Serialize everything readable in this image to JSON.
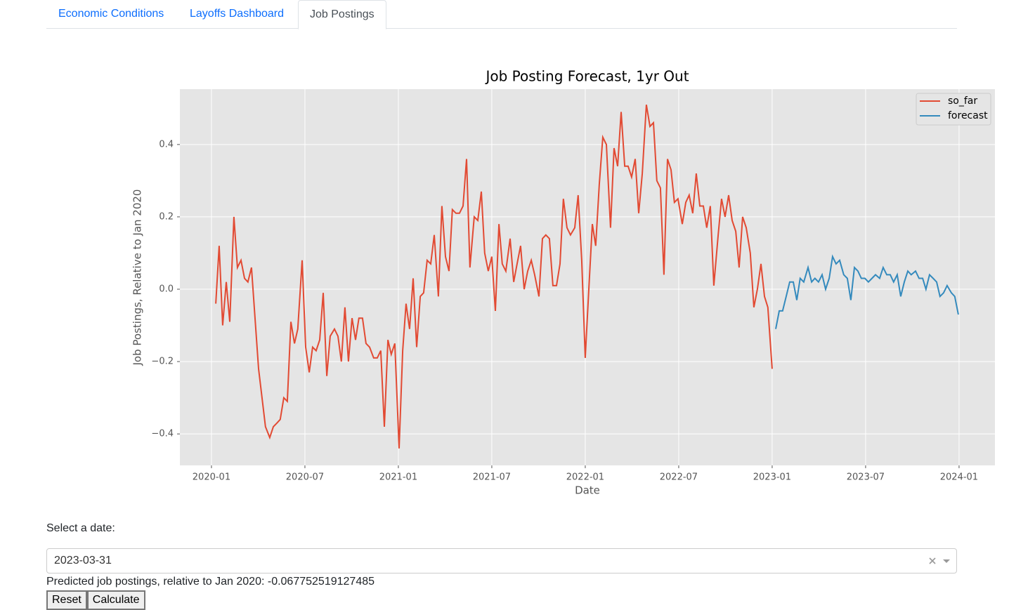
{
  "tabs": [
    "Economic Conditions",
    "Layoffs Dashboard",
    "Job Postings"
  ],
  "chart_data": {
    "type": "line",
    "title": "Job Posting Forecast, 1yr Out",
    "x_label": "Date",
    "y_label": "Job Postings, Relative to Jan 2020",
    "xlim": [
      2019.831,
      2024.192
    ],
    "ylim": [
      -0.487,
      0.553
    ],
    "xticks": [
      {
        "value": 2020.0,
        "label": "2020-01"
      },
      {
        "value": 2020.5,
        "label": "2020-07"
      },
      {
        "value": 2021.0,
        "label": "2021-01"
      },
      {
        "value": 2021.5,
        "label": "2021-07"
      },
      {
        "value": 2022.0,
        "label": "2022-01"
      },
      {
        "value": 2022.5,
        "label": "2022-07"
      },
      {
        "value": 2023.0,
        "label": "2023-01"
      },
      {
        "value": 2023.5,
        "label": "2023-07"
      },
      {
        "value": 2024.0,
        "label": "2024-01"
      }
    ],
    "yticks": [
      {
        "value": -0.4,
        "label": "−0.4"
      },
      {
        "value": -0.2,
        "label": "−0.2"
      },
      {
        "value": 0,
        "label": "0.0"
      },
      0.2,
      0.4
    ],
    "grid": true,
    "legend": "upper right",
    "background": "#e5e5e5",
    "series": [
      {
        "name": "so_far",
        "color": "#e24a33",
        "x": [
          2020.023,
          2020.041,
          2020.06,
          2020.079,
          2020.098,
          2020.12,
          2020.139,
          2020.158,
          2020.177,
          2020.195,
          2020.214,
          2020.252,
          2020.289,
          2020.312,
          2020.331,
          2020.35,
          2020.368,
          2020.387,
          2020.406,
          2020.425,
          2020.444,
          2020.462,
          2020.485,
          2020.504,
          2020.523,
          2020.541,
          2020.56,
          2020.579,
          2020.598,
          2020.617,
          2020.635,
          2020.658,
          2020.677,
          2020.695,
          2020.714,
          2020.733,
          2020.752,
          2020.771,
          2020.789,
          2020.808,
          2020.827,
          2020.846,
          2020.868,
          2020.887,
          2020.906,
          2020.925,
          2020.944,
          2020.962,
          2020.981,
          2021.004,
          2021.023,
          2021.041,
          2021.06,
          2021.079,
          2021.098,
          2021.117,
          2021.135,
          2021.154,
          2021.173,
          2021.192,
          2021.214,
          2021.233,
          2021.252,
          2021.271,
          2021.289,
          2021.308,
          2021.327,
          2021.346,
          2021.365,
          2021.383,
          2021.406,
          2021.425,
          2021.444,
          2021.462,
          2021.481,
          2021.5,
          2021.519,
          2021.538,
          2021.556,
          2021.575,
          2021.598,
          2021.617,
          2021.635,
          2021.654,
          2021.673,
          2021.692,
          2021.711,
          2021.729,
          2021.752,
          2021.771,
          2021.789,
          2021.808,
          2021.827,
          2021.846,
          2021.865,
          2021.883,
          2021.902,
          2021.921,
          2021.944,
          2021.962,
          2021.981,
          2022.0,
          2022.019,
          2022.038,
          2022.056,
          2022.075,
          2022.094,
          2022.113,
          2022.135,
          2022.154,
          2022.173,
          2022.192,
          2022.211,
          2022.229,
          2022.248,
          2022.267,
          2022.286,
          2022.305,
          2022.327,
          2022.346,
          2022.365,
          2022.383,
          2022.402,
          2022.421,
          2022.44,
          2022.459,
          2022.477,
          2022.496,
          2022.519,
          2022.538,
          2022.556,
          2022.575,
          2022.594,
          2022.613,
          2022.632,
          2022.65,
          2022.669,
          2022.688,
          2022.711,
          2022.729,
          2022.748,
          2022.767,
          2022.786,
          2022.805,
          2022.823,
          2022.842,
          2022.861,
          2022.883,
          2022.902,
          2022.921,
          2022.94,
          2022.959,
          2022.977,
          2023.0
        ],
        "values": [
          -0.04,
          0.12,
          -0.1,
          0.02,
          -0.09,
          0.2,
          0.06,
          0.08,
          0.03,
          0.02,
          0.06,
          -0.22,
          -0.38,
          -0.41,
          -0.38,
          -0.37,
          -0.36,
          -0.3,
          -0.31,
          -0.09,
          -0.15,
          -0.11,
          0.08,
          -0.16,
          -0.23,
          -0.16,
          -0.17,
          -0.14,
          -0.01,
          -0.24,
          -0.13,
          -0.11,
          -0.13,
          -0.2,
          -0.05,
          -0.2,
          -0.08,
          -0.14,
          -0.08,
          -0.08,
          -0.15,
          -0.16,
          -0.19,
          -0.19,
          -0.17,
          -0.38,
          -0.14,
          -0.18,
          -0.15,
          -0.44,
          -0.17,
          -0.04,
          -0.11,
          0.03,
          -0.16,
          -0.02,
          -0.01,
          0.08,
          0.07,
          0.15,
          -0.02,
          0.23,
          0.09,
          0.05,
          0.22,
          0.21,
          0.21,
          0.23,
          0.36,
          0.06,
          0.2,
          0.19,
          0.27,
          0.1,
          0.05,
          0.09,
          -0.06,
          0.18,
          0.07,
          0.05,
          0.14,
          0.02,
          0.07,
          0.12,
          0.0,
          0.05,
          0.08,
          0.04,
          -0.02,
          0.14,
          0.15,
          0.14,
          0.01,
          0.01,
          0.07,
          0.25,
          0.17,
          0.15,
          0.17,
          0.26,
          0.08,
          -0.19,
          0.0,
          0.18,
          0.12,
          0.29,
          0.42,
          0.4,
          0.17,
          0.39,
          0.34,
          0.49,
          0.34,
          0.34,
          0.31,
          0.36,
          0.21,
          0.32,
          0.51,
          0.45,
          0.46,
          0.3,
          0.28,
          0.04,
          0.36,
          0.33,
          0.24,
          0.25,
          0.18,
          0.24,
          0.26,
          0.21,
          0.32,
          0.23,
          0.23,
          0.17,
          0.23,
          0.01,
          0.15,
          0.25,
          0.2,
          0.26,
          0.19,
          0.16,
          0.06,
          0.2,
          0.17,
          0.1,
          -0.05,
          0.0,
          0.07,
          -0.02,
          -0.05,
          -0.22
        ]
      },
      {
        "name": "forecast",
        "color": "#348abd",
        "x": [
          2023.019,
          2023.038,
          2023.056,
          2023.075,
          2023.094,
          2023.113,
          2023.132,
          2023.15,
          2023.169,
          2023.192,
          2023.211,
          2023.229,
          2023.248,
          2023.267,
          2023.286,
          2023.305,
          2023.323,
          2023.342,
          2023.361,
          2023.383,
          2023.402,
          2023.421,
          2023.44,
          2023.459,
          2023.477,
          2023.496,
          2023.515,
          2023.534,
          2023.553,
          2023.575,
          2023.594,
          2023.613,
          2023.632,
          2023.65,
          2023.669,
          2023.688,
          2023.707,
          2023.726,
          2023.744,
          2023.767,
          2023.786,
          2023.805,
          2023.823,
          2023.842,
          2023.861,
          2023.88,
          2023.898,
          2023.917,
          2023.936,
          2023.959,
          2023.977,
          2023.996
        ],
        "values": [
          -0.11,
          -0.06,
          -0.06,
          -0.02,
          0.02,
          0.02,
          -0.03,
          0.03,
          0.02,
          0.06,
          0.02,
          0.03,
          0.02,
          0.04,
          0.0,
          0.03,
          0.09,
          0.07,
          0.08,
          0.04,
          0.03,
          -0.03,
          0.06,
          0.05,
          0.03,
          0.03,
          0.02,
          0.03,
          0.04,
          0.03,
          0.06,
          0.04,
          0.04,
          0.02,
          0.04,
          -0.02,
          0.02,
          0.05,
          0.04,
          0.05,
          0.03,
          0.03,
          0.0,
          0.04,
          0.03,
          0.02,
          -0.02,
          -0.01,
          0.01,
          -0.01,
          -0.02,
          -0.07
        ]
      }
    ]
  },
  "form": {
    "label": "Select a date:",
    "selected_date": "2023-03-31",
    "result": "Predicted job postings, relative to Jan 2020: -0.067752519127485",
    "buttons": [
      "Reset",
      "Calculate"
    ]
  }
}
